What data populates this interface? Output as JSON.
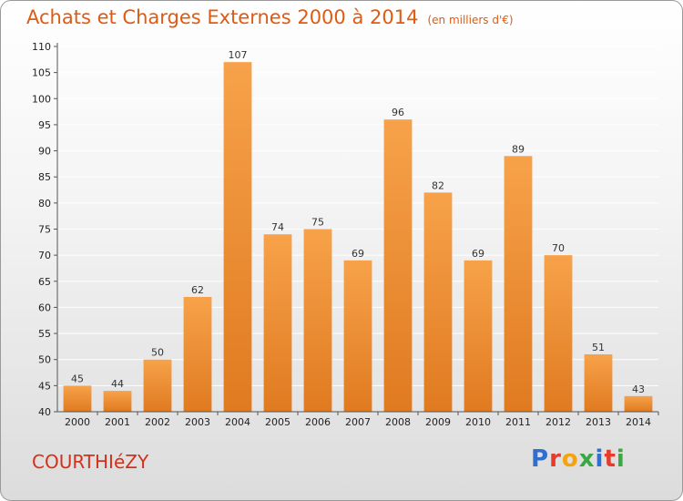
{
  "header": {
    "title": "Achats et Charges Externes 2000 à 2014",
    "subtitle": "(en milliers d'€)"
  },
  "footer": {
    "commune": "COURTHIéZY",
    "logo_letters": [
      "P",
      "r",
      "o",
      "x",
      "i",
      "t",
      "i"
    ]
  },
  "colors": {
    "bar_light": "#f7a24a",
    "bar_dark": "#e07a20",
    "grid": "#ffffff",
    "title": "#e05a10"
  },
  "chart_data": {
    "type": "bar",
    "title": "Achats et Charges Externes 2000 à 2014",
    "subtitle": "(en milliers d'€)",
    "xlabel": "",
    "ylabel": "",
    "categories": [
      "2000",
      "2001",
      "2002",
      "2003",
      "2004",
      "2005",
      "2006",
      "2007",
      "2008",
      "2009",
      "2010",
      "2011",
      "2012",
      "2013",
      "2014"
    ],
    "values": [
      45,
      44,
      50,
      62,
      107,
      74,
      75,
      69,
      96,
      82,
      69,
      89,
      70,
      51,
      43
    ],
    "ylim": [
      40,
      110
    ],
    "yticks": [
      40,
      45,
      50,
      55,
      60,
      65,
      70,
      75,
      80,
      85,
      90,
      95,
      100,
      105,
      110
    ],
    "grid": true,
    "data_labels": true,
    "legend": "none"
  }
}
